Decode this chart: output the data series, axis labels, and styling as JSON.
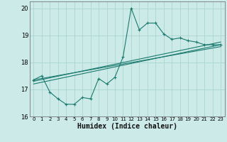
{
  "title": "",
  "xlabel": "Humidex (Indice chaleur)",
  "bg_color": "#cceae8",
  "grid_color": "#aad4d0",
  "line_color": "#1a7a6e",
  "xlim": [
    -0.5,
    23.5
  ],
  "ylim": [
    16,
    20.25
  ],
  "yticks": [
    16,
    17,
    18,
    19,
    20
  ],
  "xticks": [
    0,
    1,
    2,
    3,
    4,
    5,
    6,
    7,
    8,
    9,
    10,
    11,
    12,
    13,
    14,
    15,
    16,
    17,
    18,
    19,
    20,
    21,
    22,
    23
  ],
  "series1_x": [
    0,
    1,
    2,
    3,
    4,
    5,
    6,
    7,
    8,
    9,
    10,
    11,
    12,
    13,
    14,
    15,
    16,
    17,
    18,
    19,
    20,
    21,
    22,
    23
  ],
  "series1_y": [
    17.35,
    17.5,
    16.9,
    16.65,
    16.45,
    16.45,
    16.7,
    16.65,
    17.4,
    17.2,
    17.45,
    18.2,
    20.0,
    19.2,
    19.45,
    19.45,
    19.05,
    18.85,
    18.9,
    18.8,
    18.75,
    18.65,
    18.65,
    18.65
  ],
  "line2_x": [
    0,
    23
  ],
  "line2_y": [
    17.2,
    18.65
  ],
  "line3_x": [
    0,
    23
  ],
  "line3_y": [
    17.3,
    18.75
  ],
  "line4_x": [
    0,
    23
  ],
  "line4_y": [
    17.35,
    18.58
  ]
}
